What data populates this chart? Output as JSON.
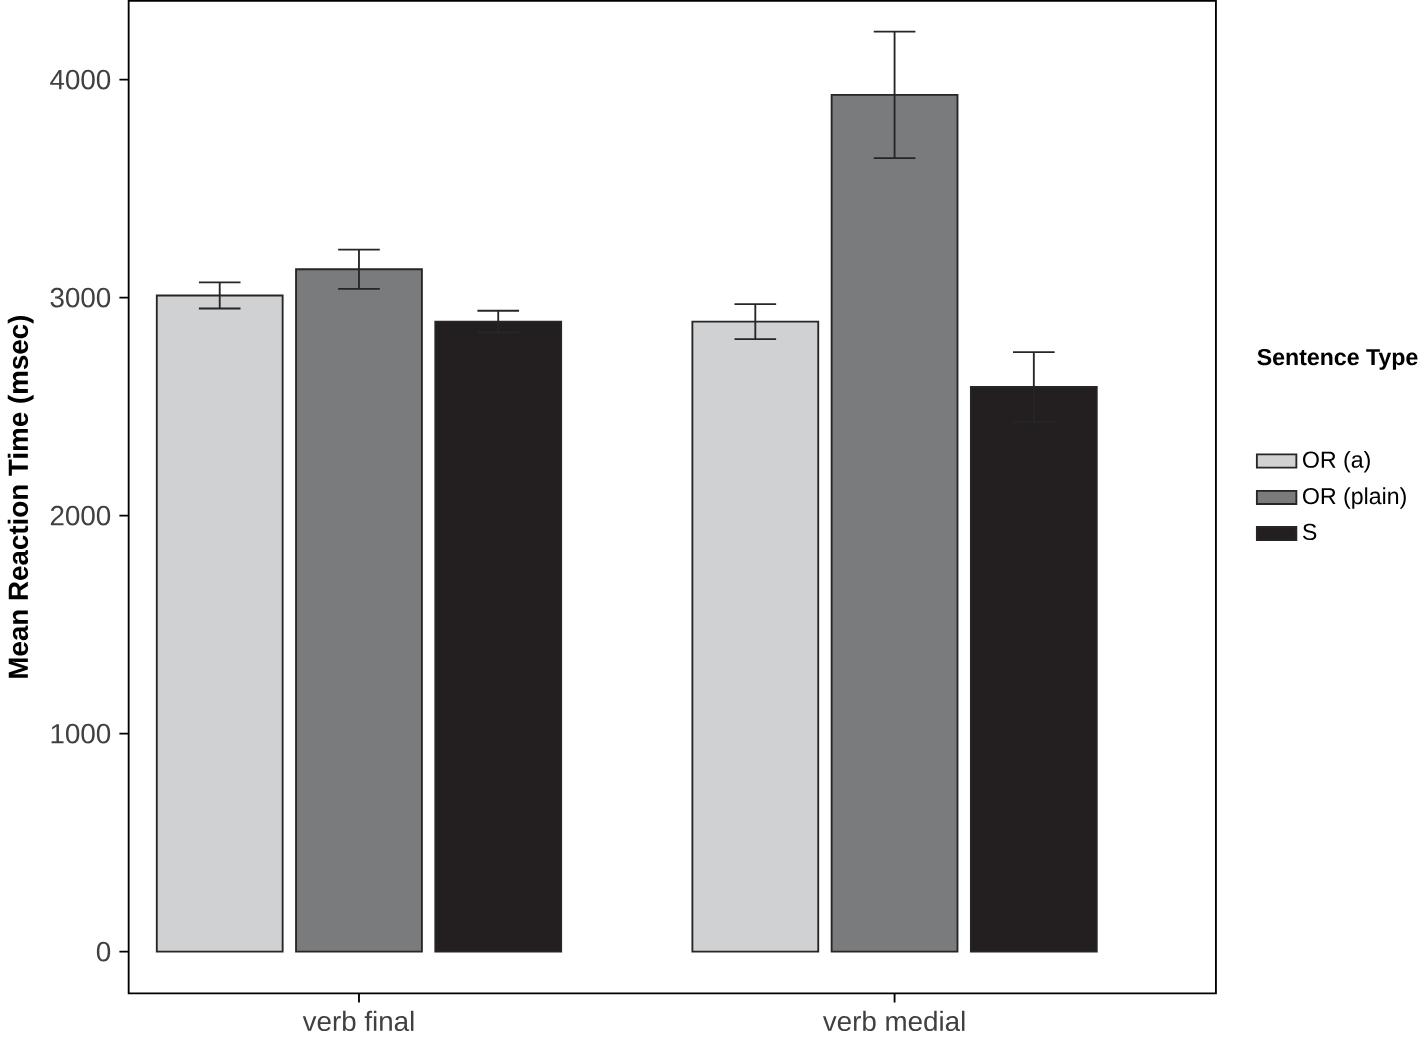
{
  "chart_data": {
    "type": "bar",
    "ylabel": "Mean Reaction Time (msec)",
    "legend_title": "Sentence Type",
    "categories": [
      "verb final",
      "verb medial"
    ],
    "series": [
      {
        "name": "OR (a)",
        "color": "#d0d1d3",
        "values": [
          3010,
          2890
        ],
        "errors": [
          60,
          80
        ]
      },
      {
        "name": "OR (plain)",
        "color": "#7a7b7d",
        "values": [
          3130,
          3930
        ],
        "errors": [
          90,
          290
        ]
      },
      {
        "name": "S",
        "color": "#231f20",
        "values": [
          2890,
          2590
        ],
        "errors": [
          50,
          160
        ]
      }
    ],
    "ylim": [
      -191,
      4361
    ],
    "yticks": [
      0,
      1000,
      2000,
      3000,
      4000
    ],
    "grid": false,
    "legend": "right"
  }
}
